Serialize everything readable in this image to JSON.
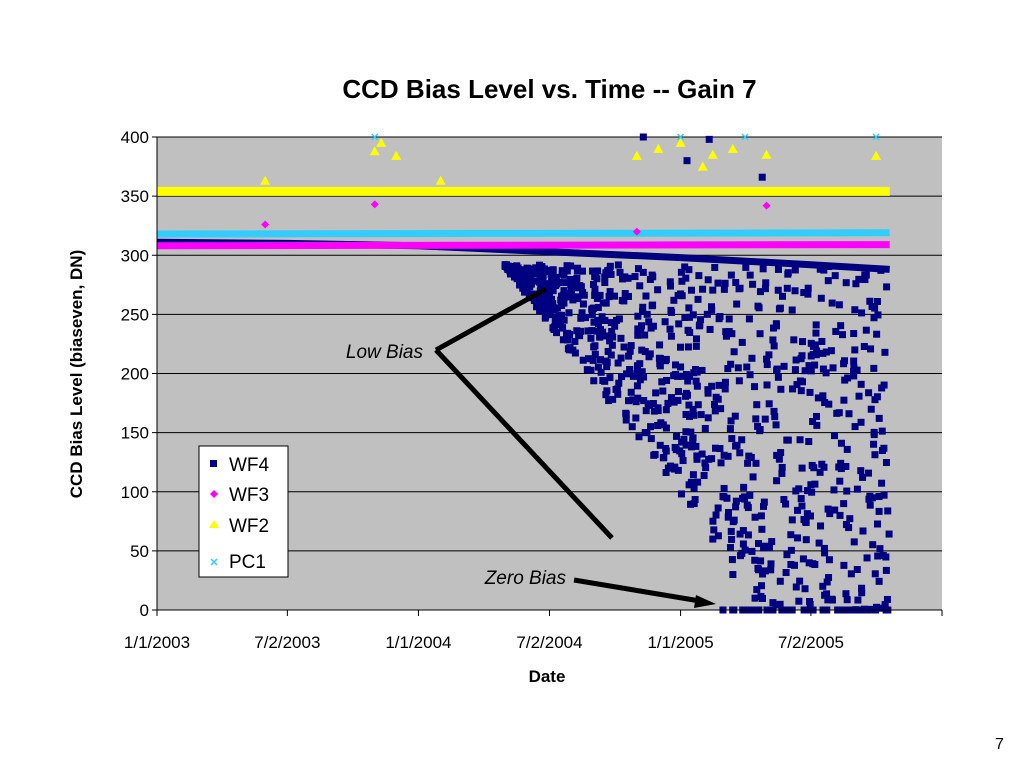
{
  "slide": {
    "page_number": "7"
  },
  "chart_data": {
    "type": "scatter",
    "title": "CCD Bias Level vs. Time -- Gain 7",
    "xlabel": "Date",
    "ylabel": "CCD Bias Level (biaseven, DN)",
    "x_tick_labels": [
      "1/1/2003",
      "7/2/2003",
      "1/1/2004",
      "7/2/2004",
      "1/1/2005",
      "7/2/2005"
    ],
    "x_ticks": [
      "2003-01-01",
      "2003-07-02",
      "2004-01-01",
      "2004-07-02",
      "2005-01-01",
      "2005-07-02",
      "2006-01-01"
    ],
    "xlim": [
      "2003-01-01",
      "2006-01-01"
    ],
    "ylim": [
      0,
      400
    ],
    "y_ticks": [
      0,
      50,
      100,
      150,
      200,
      250,
      300,
      350,
      400
    ],
    "grid": "horizontal",
    "legend_position": "lower-left",
    "background": "#c0c0c0",
    "series": [
      {
        "name": "WF4",
        "marker": "square",
        "color": "#000080",
        "baseline": [
          {
            "x": "2003-01-01",
            "y": 311
          },
          {
            "x": "2003-07-02",
            "y": 310
          },
          {
            "x": "2004-01-01",
            "y": 308
          },
          {
            "x": "2004-07-02",
            "y": 303
          },
          {
            "x": "2005-01-01",
            "y": 298
          },
          {
            "x": "2005-07-02",
            "y": 292
          },
          {
            "x": "2005-10-20",
            "y": 288
          }
        ],
        "points": [
          {
            "x": "2004-05-01",
            "y": 292
          },
          {
            "x": "2004-06-01",
            "y": 280
          },
          {
            "x": "2004-07-01",
            "y": 276
          },
          {
            "x": "2004-08-01",
            "y": 268
          },
          {
            "x": "2004-09-01",
            "y": 255
          },
          {
            "x": "2004-10-01",
            "y": 240
          },
          {
            "x": "2004-11-01",
            "y": 200
          },
          {
            "x": "2004-11-15",
            "y": 150
          },
          {
            "x": "2004-12-15",
            "y": 120
          },
          {
            "x": "2005-01-20",
            "y": 90
          },
          {
            "x": "2005-02-15",
            "y": 60
          },
          {
            "x": "2005-03-15",
            "y": 30
          },
          {
            "x": "2005-04-15",
            "y": 10
          },
          {
            "x": "2005-06-01",
            "y": 0
          },
          {
            "x": "2005-09-01",
            "y": 0
          },
          {
            "x": "2005-10-15",
            "y": 0
          },
          {
            "x": "2004-11-10",
            "y": 400
          },
          {
            "x": "2005-02-10",
            "y": 398
          },
          {
            "x": "2005-04-25",
            "y": 366
          },
          {
            "x": "2005-01-10",
            "y": 380
          }
        ]
      },
      {
        "name": "WF3",
        "marker": "diamond",
        "color": "#ff00ff",
        "baseline": [
          {
            "x": "2003-01-01",
            "y": 308
          },
          {
            "x": "2005-10-20",
            "y": 309
          }
        ],
        "points": [
          {
            "x": "2003-06-01",
            "y": 326
          },
          {
            "x": "2003-11-01",
            "y": 343
          },
          {
            "x": "2005-05-01",
            "y": 342
          },
          {
            "x": "2004-11-01",
            "y": 320
          }
        ]
      },
      {
        "name": "WF2",
        "marker": "triangle",
        "color": "#ffff00",
        "baseline": [
          {
            "x": "2003-01-01",
            "y": 354
          },
          {
            "x": "2005-10-20",
            "y": 354
          }
        ],
        "points": [
          {
            "x": "2003-06-01",
            "y": 363
          },
          {
            "x": "2003-11-01",
            "y": 388
          },
          {
            "x": "2003-11-10",
            "y": 395
          },
          {
            "x": "2003-12-01",
            "y": 384
          },
          {
            "x": "2004-02-01",
            "y": 363
          },
          {
            "x": "2004-11-01",
            "y": 384
          },
          {
            "x": "2004-12-01",
            "y": 390
          },
          {
            "x": "2005-01-01",
            "y": 395
          },
          {
            "x": "2005-02-15",
            "y": 385
          },
          {
            "x": "2005-03-15",
            "y": 390
          },
          {
            "x": "2005-05-01",
            "y": 385
          },
          {
            "x": "2005-10-01",
            "y": 384
          },
          {
            "x": "2005-02-01",
            "y": 375
          }
        ]
      },
      {
        "name": "PC1",
        "marker": "x",
        "color": "#33ccff",
        "baseline": [
          {
            "x": "2003-01-01",
            "y": 318
          },
          {
            "x": "2005-10-20",
            "y": 319
          }
        ],
        "points": [
          {
            "x": "2003-11-01",
            "y": 400
          },
          {
            "x": "2005-04-01",
            "y": 400
          },
          {
            "x": "2005-10-01",
            "y": 400
          },
          {
            "x": "2005-01-01",
            "y": 400
          }
        ]
      }
    ],
    "annotations": [
      {
        "text": "Low Bias",
        "style": "italic"
      },
      {
        "text": "Zero Bias",
        "style": "italic"
      }
    ]
  }
}
